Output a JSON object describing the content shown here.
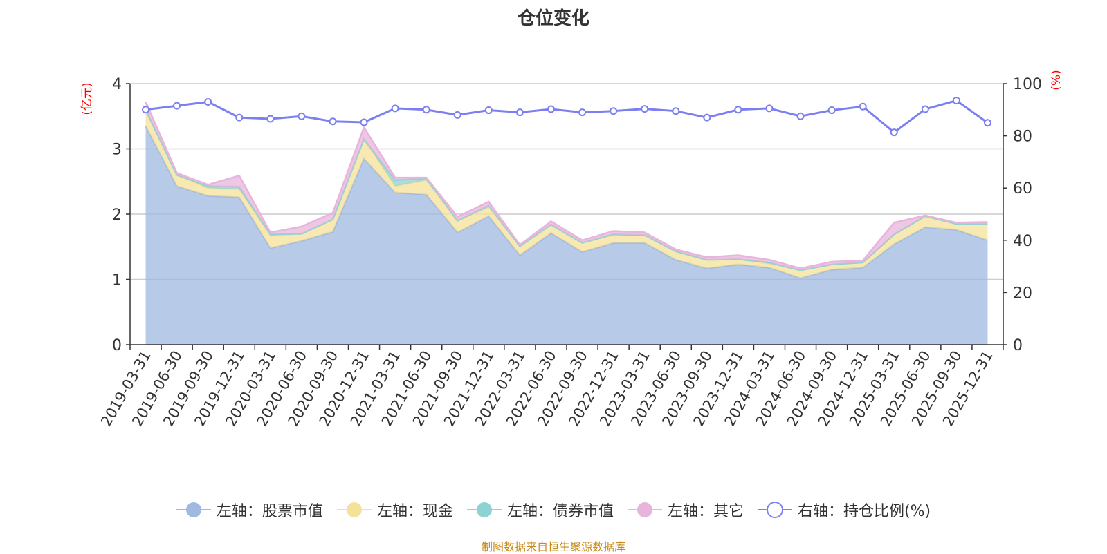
{
  "chart_data": {
    "type": "area",
    "title": "仓位变化",
    "left_axis_unit": "(亿元)",
    "right_axis_unit": "(%)",
    "left_ylim": [
      0,
      4
    ],
    "left_ticks": [
      "0",
      "1",
      "2",
      "3",
      "4"
    ],
    "right_ylim": [
      0,
      100
    ],
    "right_ticks": [
      "0",
      "20",
      "40",
      "60",
      "80",
      "100"
    ],
    "categories": [
      "2019-03-31",
      "2019-06-30",
      "2019-09-30",
      "2019-12-31",
      "2020-03-31",
      "2020-06-30",
      "2020-09-30",
      "2020-12-31",
      "2021-03-31",
      "2021-06-30",
      "2021-09-30",
      "2021-12-31",
      "2022-03-31",
      "2022-06-30",
      "2022-09-30",
      "2022-12-31",
      "2023-03-31",
      "2023-06-30",
      "2023-09-30",
      "2023-12-31",
      "2024-03-31",
      "2024-06-30",
      "2024-09-30",
      "2024-12-31",
      "2025-03-31",
      "2025-06-30",
      "2025-09-30",
      "2025-12-31"
    ],
    "series": [
      {
        "name": "左轴：股票市值",
        "axis": "left",
        "kind": "stacked-area",
        "color": "#9fb9e0",
        "values": [
          3.35,
          2.43,
          2.28,
          2.26,
          1.48,
          1.59,
          1.73,
          2.85,
          2.33,
          2.3,
          1.72,
          1.97,
          1.37,
          1.71,
          1.42,
          1.56,
          1.56,
          1.3,
          1.17,
          1.23,
          1.18,
          1.02,
          1.15,
          1.18,
          1.54,
          1.8,
          1.76,
          1.6
        ]
      },
      {
        "name": "左轴：现金",
        "axis": "left",
        "kind": "stacked-area",
        "color": "#f5e29a",
        "values": [
          0.25,
          0.17,
          0.12,
          0.12,
          0.19,
          0.11,
          0.19,
          0.3,
          0.1,
          0.22,
          0.18,
          0.14,
          0.14,
          0.13,
          0.14,
          0.13,
          0.12,
          0.13,
          0.13,
          0.08,
          0.06,
          0.12,
          0.08,
          0.08,
          0.15,
          0.17,
          0.09,
          0.25
        ]
      },
      {
        "name": "左轴：债券市值",
        "axis": "left",
        "kind": "stacked-area",
        "color": "#8dd3d3",
        "values": [
          0.0,
          0.0,
          0.03,
          0.04,
          0.02,
          0.0,
          0.0,
          0.0,
          0.09,
          0.03,
          0.0,
          0.02,
          0.0,
          0.0,
          0.0,
          0.0,
          0.0,
          0.0,
          0.0,
          0.0,
          0.02,
          0.0,
          0.0,
          0.0,
          0.0,
          0.0,
          0.0,
          0.0
        ]
      },
      {
        "name": "左轴：其它",
        "axis": "left",
        "kind": "stacked-area",
        "color": "#e8b4dc",
        "values": [
          0.12,
          0.03,
          0.02,
          0.17,
          0.03,
          0.11,
          0.1,
          0.18,
          0.04,
          0.01,
          0.06,
          0.06,
          0.02,
          0.05,
          0.04,
          0.05,
          0.04,
          0.03,
          0.04,
          0.06,
          0.04,
          0.03,
          0.04,
          0.03,
          0.18,
          0.01,
          0.02,
          0.03
        ]
      },
      {
        "name": "右轴：持仓比例(%)",
        "axis": "right",
        "kind": "line",
        "color": "#7b7ff0",
        "values": [
          90.0,
          91.5,
          93.0,
          87.0,
          86.5,
          87.5,
          85.5,
          85.2,
          90.5,
          90.0,
          88.0,
          89.8,
          89.0,
          90.2,
          89.0,
          89.5,
          90.3,
          89.5,
          87.0,
          90.0,
          90.5,
          87.5,
          89.8,
          91.2,
          81.3,
          90.2,
          93.5,
          85.0
        ]
      }
    ],
    "legend_position": "bottom",
    "grid": true
  },
  "source_note": "制图数据来自恒生聚源数据库"
}
